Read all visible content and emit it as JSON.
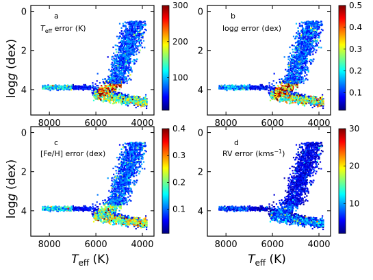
{
  "figure": {
    "ylabel": "log",
    "ylabel_italic": "g",
    "ylabel_unit": " (dex)",
    "xlabel_symbol": "T",
    "xlabel_sub": "eff",
    "xlabel_unit": " (K)",
    "colorscale": [
      "#00007f",
      "#0000ff",
      "#007fff",
      "#00ffff",
      "#7fff7f",
      "#ffff00",
      "#ff7f00",
      "#ff0000",
      "#7f0000"
    ]
  },
  "chart_data": [
    {
      "type": "scatter",
      "panel": "a",
      "annotation": {
        "symbol": "T",
        "sub": "eff",
        "text": " error (K)"
      },
      "x_axis": {
        "ticks": [
          8000,
          6000,
          4000
        ],
        "range": [
          8800,
          3500
        ],
        "inverted": true
      },
      "y_axis": {
        "ticks": [
          0,
          2,
          4
        ],
        "range": [
          -0.3,
          5.3
        ],
        "inverted": true
      },
      "colorbar": {
        "ticks": [
          100,
          200,
          300
        ],
        "range": [
          10,
          300
        ]
      },
      "value_profile": {
        "dwarf": 50,
        "giant": 70,
        "hot_end": 110,
        "turnoff_hot": 230,
        "bottom": 150
      }
    },
    {
      "type": "scatter",
      "panel": "b",
      "annotation": {
        "prefix": "log",
        "italic": "g",
        "text": " error (dex)"
      },
      "x_axis": {
        "ticks": [
          8000,
          6000,
          4000
        ],
        "range": [
          8800,
          3500
        ],
        "inverted": true
      },
      "y_axis": {
        "ticks": [
          0,
          2,
          4
        ],
        "range": [
          -0.3,
          5.3
        ],
        "inverted": true
      },
      "colorbar": {
        "ticks": [
          0.1,
          0.2,
          0.3,
          0.4,
          0.5
        ],
        "range": [
          0.02,
          0.5
        ]
      },
      "value_profile": {
        "dwarf": 0.08,
        "giant": 0.12,
        "hot_end": 0.15,
        "turnoff_hot": 0.4,
        "bottom": 0.28
      }
    },
    {
      "type": "scatter",
      "panel": "c",
      "annotation": {
        "text": "[Fe/H] error (dex)"
      },
      "x_axis": {
        "ticks": [
          8000,
          6000,
          4000
        ],
        "range": [
          8800,
          3500
        ],
        "inverted": true
      },
      "y_axis": {
        "ticks": [
          0,
          2,
          4
        ],
        "range": [
          -0.3,
          5.3
        ],
        "inverted": true
      },
      "colorbar": {
        "ticks": [
          0.1,
          0.2,
          0.3,
          0.4
        ],
        "range": [
          0.01,
          0.4
        ]
      },
      "value_profile": {
        "dwarf": 0.06,
        "giant": 0.09,
        "hot_end": 0.14,
        "turnoff_hot": 0.2,
        "bottom": 0.22
      }
    },
    {
      "type": "scatter",
      "panel": "d",
      "annotation": {
        "text": "RV error (kms",
        "sup": "−1",
        "suffix": ")"
      },
      "x_axis": {
        "ticks": [
          8000,
          6000,
          4000
        ],
        "range": [
          8800,
          3500
        ],
        "inverted": true
      },
      "y_axis": {
        "ticks": [
          0,
          2,
          4
        ],
        "range": [
          -0.3,
          5.3
        ],
        "inverted": true
      },
      "colorbar": {
        "ticks": [
          10,
          20,
          30
        ],
        "range": [
          2,
          30
        ]
      },
      "value_profile": {
        "dwarf": 4,
        "giant": 5,
        "hot_end": 7,
        "turnoff_hot": 8,
        "bottom": 9
      }
    }
  ]
}
